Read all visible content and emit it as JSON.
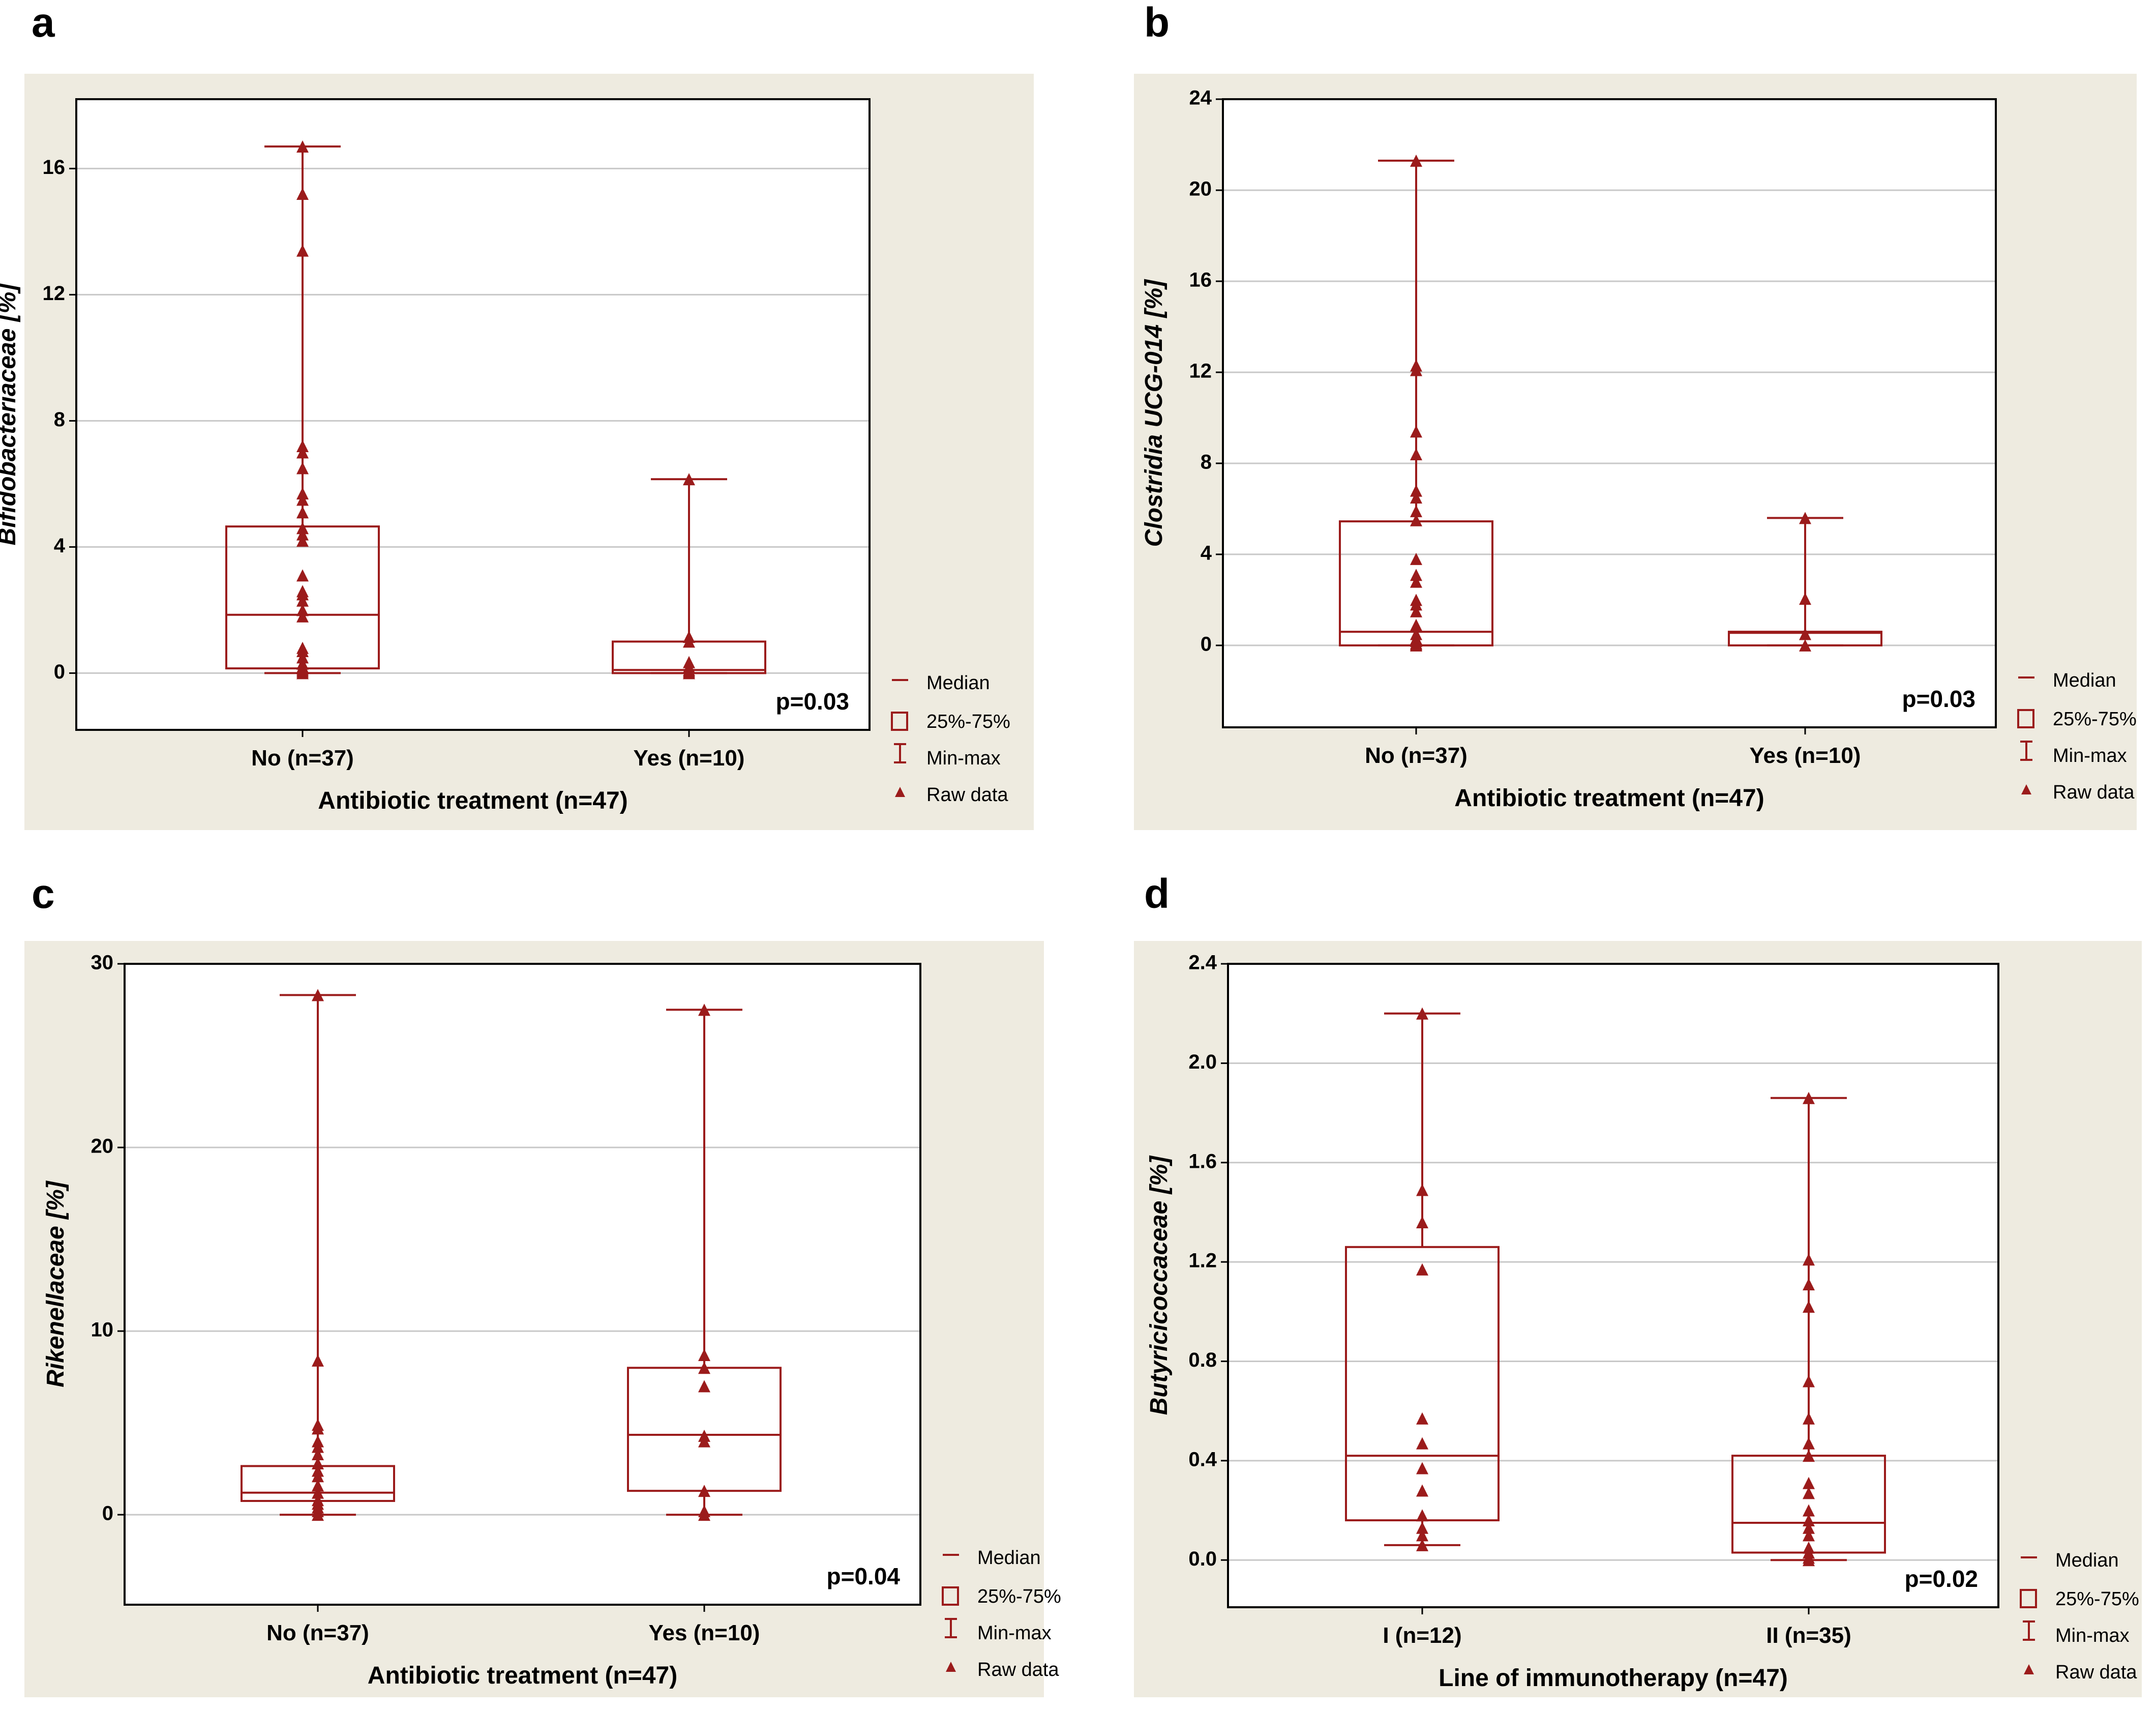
{
  "colors": {
    "panel_bg": "#eeebe0",
    "plot_bg": "#ffffff",
    "frame": "#000000",
    "grid": "#c8c8c8",
    "series": "#9b1b1b",
    "text": "#000000"
  },
  "legend": {
    "median": "Median",
    "iqr": "25%-75%",
    "range": "Min-max",
    "raw": "Raw data"
  },
  "chart_data": [
    {
      "type": "box",
      "panel_label": "a",
      "ylabel": "Bifidobacteriaceae [%]",
      "xlabel": "Antibiotic treatment (n=47)",
      "ylim": [
        -1.8,
        18.2
      ],
      "yticks": [
        0,
        4,
        8,
        12,
        16
      ],
      "ytick_labels": [
        "0",
        "4",
        "8",
        "12",
        "16"
      ],
      "grid": true,
      "legend_position": "bottom-right outside",
      "pvalue": "p=0.03",
      "groups": [
        {
          "label": "No (n=37)",
          "min": 0,
          "q1": 0.15,
          "median": 1.85,
          "q3": 4.65,
          "max": 16.7,
          "raw": [
            0,
            0.05,
            0.1,
            0.15,
            0.2,
            0.3,
            0.5,
            0.7,
            0.8,
            1.8,
            2.0,
            2.3,
            2.5,
            2.6,
            3.1,
            4.2,
            4.4,
            4.6,
            5.1,
            5.5,
            5.7,
            6.5,
            7.0,
            7.2,
            13.4,
            15.2,
            16.7
          ]
        },
        {
          "label": "Yes (n=10)",
          "min": 0,
          "q1": 0,
          "median": 0.1,
          "q3": 1.0,
          "max": 6.15,
          "raw": [
            0,
            0.05,
            0.1,
            0.2,
            0.35,
            1.0,
            1.15,
            6.15
          ]
        }
      ]
    },
    {
      "type": "box",
      "panel_label": "b",
      "ylabel": "Clostridia UCG-014 [%]",
      "xlabel": "Antibiotic treatment (n=47)",
      "ylim": [
        -3.6,
        24
      ],
      "yticks": [
        0,
        4,
        8,
        12,
        16,
        20,
        24
      ],
      "ytick_labels": [
        "0",
        "4",
        "8",
        "12",
        "16",
        "20",
        "24"
      ],
      "grid": true,
      "legend_position": "bottom-right outside",
      "pvalue": "p=0.03",
      "groups": [
        {
          "label": "No (n=37)",
          "min": 0,
          "q1": 0,
          "median": 0.6,
          "q3": 5.45,
          "max": 21.3,
          "raw": [
            0,
            0.05,
            0.1,
            0.2,
            0.3,
            0.5,
            0.9,
            1.5,
            1.8,
            2.0,
            2.8,
            3.1,
            3.8,
            5.5,
            5.9,
            6.5,
            6.8,
            8.4,
            9.4,
            12.1,
            12.3,
            21.3
          ]
        },
        {
          "label": "Yes (n=10)",
          "min": 0,
          "q1": 0,
          "median": 0.55,
          "q3": 0.6,
          "max": 5.6,
          "raw": [
            0,
            0.5,
            2.05,
            5.6
          ]
        }
      ]
    },
    {
      "type": "box",
      "panel_label": "c",
      "ylabel": "Rikenellaceae [%]",
      "xlabel": "Antibiotic treatment (n=47)",
      "ylim": [
        -4.9,
        30
      ],
      "yticks": [
        0,
        10,
        20,
        30
      ],
      "ytick_labels": [
        "0",
        "10",
        "20",
        "30"
      ],
      "grid": true,
      "legend_position": "bottom-right outside",
      "pvalue": "p=0.04",
      "groups": [
        {
          "label": "No (n=37)",
          "min": 0,
          "q1": 0.75,
          "median": 1.2,
          "q3": 2.65,
          "max": 28.3,
          "raw": [
            0,
            0.2,
            0.4,
            0.6,
            0.8,
            1.2,
            1.6,
            2.1,
            2.4,
            2.8,
            3.3,
            3.7,
            4.0,
            4.7,
            4.9,
            8.4,
            28.3
          ]
        },
        {
          "label": "Yes (n=10)",
          "min": 0,
          "q1": 1.3,
          "median": 4.35,
          "q3": 8.0,
          "max": 27.5,
          "raw": [
            0,
            0.2,
            1.3,
            4.0,
            4.3,
            7.0,
            8.0,
            8.7,
            27.5
          ]
        }
      ]
    },
    {
      "type": "box",
      "panel_label": "d",
      "ylabel": "Butyricicoccaceae [%]",
      "xlabel": "Line of immunotherapy (n=47)",
      "ylim": [
        -0.19,
        2.4
      ],
      "yticks": [
        0,
        0.4,
        0.8,
        1.2,
        1.6,
        2.0,
        2.4
      ],
      "ytick_labels": [
        "0.0",
        "0.4",
        "0.8",
        "1.2",
        "1.6",
        "2.0",
        "2.4"
      ],
      "grid": true,
      "legend_position": "bottom-right outside",
      "pvalue": "p=0.02",
      "groups": [
        {
          "label": "I (n=12)",
          "min": 0.06,
          "q1": 0.16,
          "median": 0.42,
          "q3": 1.26,
          "max": 2.2,
          "raw": [
            0.06,
            0.1,
            0.13,
            0.18,
            0.28,
            0.37,
            0.47,
            0.57,
            1.17,
            1.36,
            1.49,
            2.2
          ]
        },
        {
          "label": "II (n=35)",
          "min": 0,
          "q1": 0.03,
          "median": 0.15,
          "q3": 0.42,
          "max": 1.86,
          "raw": [
            0,
            0.01,
            0.03,
            0.05,
            0.1,
            0.13,
            0.16,
            0.2,
            0.27,
            0.31,
            0.42,
            0.47,
            0.57,
            0.72,
            1.02,
            1.11,
            1.21,
            1.86
          ]
        }
      ]
    }
  ]
}
